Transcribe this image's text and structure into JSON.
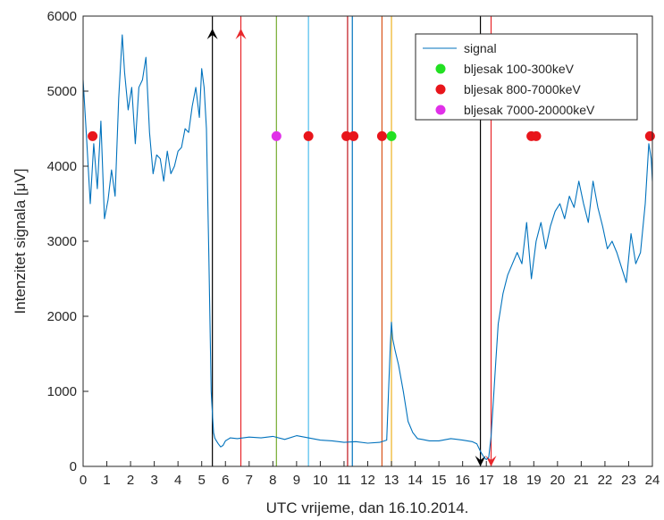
{
  "chart_data": {
    "type": "line",
    "xlabel": "UTC vrijeme, dan 16.10.2014.",
    "ylabel": "Intenzitet signala [μV]",
    "xlim": [
      0,
      24
    ],
    "ylim": [
      0,
      6000
    ],
    "xticks": [
      0,
      1,
      2,
      3,
      4,
      5,
      6,
      7,
      8,
      9,
      10,
      11,
      12,
      13,
      14,
      15,
      16,
      17,
      18,
      19,
      20,
      21,
      22,
      23,
      24
    ],
    "yticks": [
      0,
      1000,
      2000,
      3000,
      4000,
      5000,
      6000
    ],
    "grid": false,
    "legend_position": "top-right",
    "series": [
      {
        "name": "signal",
        "color": "#0072BD",
        "x": [
          0,
          0.15,
          0.3,
          0.45,
          0.6,
          0.75,
          0.9,
          1.05,
          1.2,
          1.35,
          1.5,
          1.65,
          1.75,
          1.9,
          2.05,
          2.2,
          2.35,
          2.5,
          2.65,
          2.8,
          2.95,
          3.1,
          3.25,
          3.4,
          3.55,
          3.7,
          3.85,
          4.0,
          4.15,
          4.3,
          4.45,
          4.6,
          4.75,
          4.9,
          5.0,
          5.1,
          5.2,
          5.3,
          5.4,
          5.45,
          5.5,
          5.55,
          5.6,
          5.7,
          5.8,
          5.9,
          6.0,
          6.2,
          6.5,
          7.0,
          7.5,
          8.0,
          8.5,
          9.0,
          9.5,
          10.0,
          10.5,
          11.0,
          11.5,
          12.0,
          12.5,
          12.8,
          12.95,
          13.0,
          13.05,
          13.15,
          13.3,
          13.5,
          13.7,
          13.9,
          14.1,
          14.3,
          14.6,
          15.0,
          15.5,
          16.0,
          16.4,
          16.6,
          16.75,
          16.9,
          17.0,
          17.1,
          17.2,
          17.3,
          17.4,
          17.5,
          17.7,
          17.9,
          18.1,
          18.3,
          18.5,
          18.7,
          18.9,
          19.1,
          19.3,
          19.5,
          19.7,
          19.9,
          20.1,
          20.3,
          20.5,
          20.7,
          20.9,
          21.1,
          21.3,
          21.5,
          21.7,
          21.9,
          22.1,
          22.3,
          22.5,
          22.7,
          22.9,
          23.1,
          23.3,
          23.5,
          23.7,
          23.85,
          23.95,
          24.0
        ],
        "y": [
          5150,
          4350,
          3500,
          4300,
          3700,
          4600,
          3300,
          3550,
          3950,
          3600,
          4900,
          5750,
          5250,
          4750,
          5050,
          4300,
          5050,
          5150,
          5450,
          4450,
          3900,
          4150,
          4100,
          3800,
          4200,
          3900,
          4000,
          4200,
          4250,
          4500,
          4450,
          4800,
          5050,
          4650,
          5300,
          5050,
          4500,
          2800,
          1000,
          700,
          450,
          380,
          350,
          300,
          260,
          280,
          340,
          380,
          370,
          390,
          380,
          400,
          360,
          410,
          380,
          350,
          340,
          320,
          330,
          310,
          320,
          350,
          1600,
          1920,
          1700,
          1550,
          1350,
          1000,
          600,
          450,
          370,
          360,
          340,
          340,
          370,
          350,
          330,
          300,
          200,
          120,
          90,
          120,
          400,
          900,
          1400,
          1900,
          2300,
          2550,
          2700,
          2850,
          2700,
          3250,
          2500,
          3000,
          3250,
          2900,
          3200,
          3400,
          3500,
          3300,
          3600,
          3450,
          3800,
          3500,
          3250,
          3800,
          3450,
          3200,
          2900,
          3000,
          2850,
          2650,
          2450,
          3100,
          2700,
          2850,
          3500,
          4300,
          4100,
          3800
        ]
      }
    ],
    "vertical_lines": [
      {
        "x": 5.45,
        "color": "#000000",
        "arrow": "up"
      },
      {
        "x": 6.65,
        "color": "#E8262A",
        "arrow": "up"
      },
      {
        "x": 8.15,
        "color": "#77AC30"
      },
      {
        "x": 9.5,
        "color": "#4DBEEE"
      },
      {
        "x": 11.15,
        "color": "#C0151B"
      },
      {
        "x": 11.35,
        "color": "#0072BD"
      },
      {
        "x": 12.6,
        "color": "#D95319"
      },
      {
        "x": 13.0,
        "color": "#EDB120"
      },
      {
        "x": 16.75,
        "color": "#000000",
        "arrow": "down"
      },
      {
        "x": 17.2,
        "color": "#E8262A",
        "arrow": "down"
      }
    ],
    "marker_y": 4400,
    "marker_series": [
      {
        "name": "bljesak 100-300keV",
        "color": "#22E022",
        "x": [
          13.0
        ]
      },
      {
        "name": "bljesak 800-7000keV",
        "color": "#E8151B",
        "x": [
          0.4,
          9.5,
          11.1,
          11.4,
          12.6,
          18.9,
          19.1,
          23.9
        ]
      },
      {
        "name": "bljesak 7000-20000keV",
        "color": "#E030E8",
        "x": [
          8.15
        ]
      }
    ]
  }
}
